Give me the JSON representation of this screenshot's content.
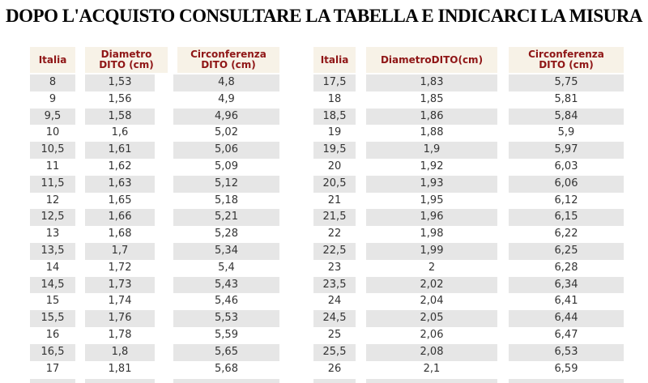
{
  "title": "DOPO L'ACQUISTO CONSULTARE LA TABELLA E INDICARCI LA MISURA",
  "colors": {
    "header_background": "#f7f2e7",
    "header_text": "#8f1616",
    "row_stripe": "#e6e6e6",
    "row_alt": "#ffffff",
    "body_text": "#333333",
    "title_text": "#050505",
    "page_background": "#ffffff"
  },
  "tables": [
    {
      "name": "ring-sizes-8-to-17",
      "headers": [
        "Italia",
        "Diametro\nDITO (cm)",
        "Circonferenza\nDITO (cm)"
      ],
      "rows": [
        [
          "8",
          "1,53",
          "4,8"
        ],
        [
          "9",
          "1,56",
          "4,9"
        ],
        [
          "9,5",
          "1,58",
          "4,96"
        ],
        [
          "10",
          "1,6",
          "5,02"
        ],
        [
          "10,5",
          "1,61",
          "5,06"
        ],
        [
          "11",
          "1,62",
          "5,09"
        ],
        [
          "11,5",
          "1,63",
          "5,12"
        ],
        [
          "12",
          "1,65",
          "5,18"
        ],
        [
          "12,5",
          "1,66",
          "5,21"
        ],
        [
          "13",
          "1,68",
          "5,28"
        ],
        [
          "13,5",
          "1,7",
          "5,34"
        ],
        [
          "14",
          "1,72",
          "5,4"
        ],
        [
          "14,5",
          "1,73",
          "5,43"
        ],
        [
          "15",
          "1,74",
          "5,46"
        ],
        [
          "15,5",
          "1,76",
          "5,53"
        ],
        [
          "16",
          "1,78",
          "5,59"
        ],
        [
          "16,5",
          "1,8",
          "5,65"
        ],
        [
          "17",
          "1,81",
          "5,68"
        ]
      ]
    },
    {
      "name": "ring-sizes-17.5-to-26",
      "headers": [
        "Italia",
        "DiametroDITO(cm)",
        "Circonferenza\nDITO (cm)"
      ],
      "rows": [
        [
          "17,5",
          "1,83",
          "5,75"
        ],
        [
          "18",
          "1,85",
          "5,81"
        ],
        [
          "18,5",
          "1,86",
          "5,84"
        ],
        [
          "19",
          "1,88",
          "5,9"
        ],
        [
          "19,5",
          "1,9",
          "5,97"
        ],
        [
          "20",
          "1,92",
          "6,03"
        ],
        [
          "20,5",
          "1,93",
          "6,06"
        ],
        [
          "21",
          "1,95",
          "6,12"
        ],
        [
          "21,5",
          "1,96",
          "6,15"
        ],
        [
          "22",
          "1,98",
          "6,22"
        ],
        [
          "22,5",
          "1,99",
          "6,25"
        ],
        [
          "23",
          "2",
          "6,28"
        ],
        [
          "23,5",
          "2,02",
          "6,34"
        ],
        [
          "24",
          "2,04",
          "6,41"
        ],
        [
          "24,5",
          "2,05",
          "6,44"
        ],
        [
          "25",
          "2,06",
          "6,47"
        ],
        [
          "25,5",
          "2,08",
          "6,53"
        ],
        [
          "26",
          "2,1",
          "6,59"
        ]
      ]
    }
  ]
}
